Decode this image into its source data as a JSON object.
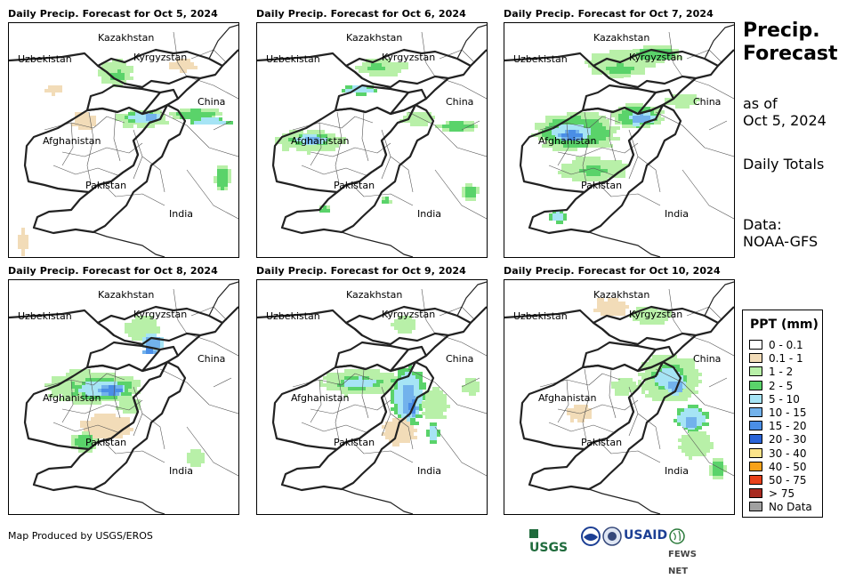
{
  "panels": [
    {
      "title": "Daily Precip. Forecast for Oct 5, 2024",
      "rain": "d1"
    },
    {
      "title": "Daily Precip. Forecast for Oct 6, 2024",
      "rain": "d2"
    },
    {
      "title": "Daily Precip. Forecast for Oct 7, 2024",
      "rain": "d3"
    },
    {
      "title": "Daily Precip. Forecast for Oct 8, 2024",
      "rain": "d4"
    },
    {
      "title": "Daily Precip. Forecast for Oct 9, 2024",
      "rain": "d5"
    },
    {
      "title": "Daily Precip. Forecast for Oct 10, 2024",
      "rain": "d6"
    }
  ],
  "map_labels": {
    "kazakhstan": "Kazakhstan",
    "uzbekistan": "Uzbekistan",
    "kyrgyzstan": "Kyrgyzstan",
    "china": "China",
    "afghanistan": "Afghanistan",
    "pakistan": "Pakistan",
    "india": "India"
  },
  "sidebar": {
    "title_line1": "Precip.",
    "title_line2": "Forecast",
    "asof_line1": "as of",
    "asof_line2": "Oct 5, 2024",
    "totals": "Daily Totals",
    "data_line1": "Data:",
    "data_line2": "NOAA-GFS"
  },
  "legend": {
    "title": "PPT (mm)",
    "items": [
      {
        "label": "0 - 0.1",
        "color": "#ffffff"
      },
      {
        "label": "0.1 - 1",
        "color": "#f2dcb8"
      },
      {
        "label": "1 - 2",
        "color": "#b8f0a8"
      },
      {
        "label": "2 - 5",
        "color": "#5ad36a"
      },
      {
        "label": "5 - 10",
        "color": "#a6e4f5"
      },
      {
        "label": "10 - 15",
        "color": "#72b2ec"
      },
      {
        "label": "15 - 20",
        "color": "#4a8ee6"
      },
      {
        "label": "20 - 30",
        "color": "#2a64d8"
      },
      {
        "label": "30 - 40",
        "color": "#fce48a"
      },
      {
        "label": "40 - 50",
        "color": "#f8a21a"
      },
      {
        "label": "50 - 75",
        "color": "#e8401a"
      },
      {
        "label": "> 75",
        "color": "#a82a20"
      },
      {
        "label": "No Data",
        "color": "#a0a0a0"
      }
    ]
  },
  "footer": {
    "credit": "Map Produced by USGS/EROS",
    "logos": {
      "usgs": "USGS",
      "usaid": "USAID",
      "fewsnet": "FEWS NET"
    }
  }
}
